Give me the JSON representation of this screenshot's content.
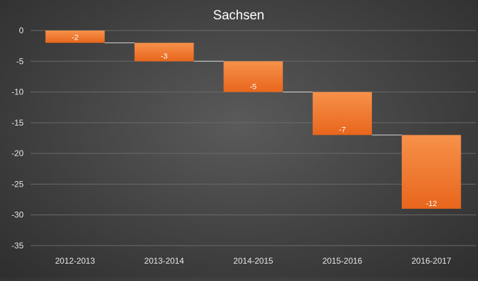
{
  "chart_data": {
    "type": "waterfall",
    "title": "Sachsen",
    "xlabel": "",
    "ylabel": "",
    "categories": [
      "2012-2013",
      "2013-2014",
      "2014-2015",
      "2015-2016",
      "2016-2017"
    ],
    "values": [
      -2,
      -3,
      -5,
      -7,
      -12
    ],
    "data_labels": [
      "-2",
      "-3",
      "-5",
      "-7",
      "-12"
    ],
    "ylim": [
      -35,
      0
    ],
    "yticks": [
      0,
      -5,
      -10,
      -15,
      -20,
      -25,
      -30,
      -35
    ],
    "ytick_labels": [
      "0",
      "-5",
      "-10",
      "-15",
      "-20",
      "-25",
      "-30",
      "-35"
    ],
    "grid": true,
    "connectors": true,
    "legend": "none"
  },
  "colors": {
    "bar_top": "#f7914a",
    "bar_bottom": "#e8661c",
    "text": "#ffffff",
    "axis_text": "#e6e6e6",
    "gridline": "#6a6a6a",
    "connector": "#d9d9d9"
  }
}
